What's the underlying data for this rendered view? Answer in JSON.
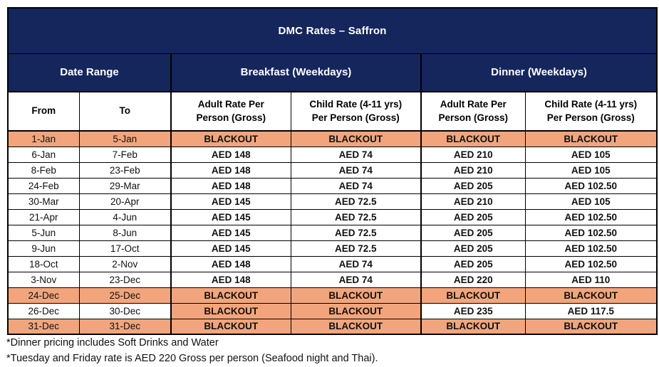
{
  "colors": {
    "navy": "#15265D",
    "blackout_orange": "#F2A57C",
    "border": "#000000",
    "header_text": "#ffffff",
    "body_text": "#111111"
  },
  "table": {
    "title": "DMC Rates – Saffron",
    "groups": [
      "Date Range",
      "Breakfast (Weekdays)",
      "Dinner (Weekdays)"
    ],
    "columns": [
      {
        "lines": [
          "From"
        ]
      },
      {
        "lines": [
          "To"
        ]
      },
      {
        "lines": [
          "Adult Rate Per",
          "Person (Gross)"
        ]
      },
      {
        "lines": [
          "Child Rate (4-11 yrs)",
          "Per Person (Gross)"
        ]
      },
      {
        "lines": [
          "Adult Rate Per",
          "Person (Gross)"
        ]
      },
      {
        "lines": [
          "Child Rate (4-11 yrs)",
          "Per Person (Gross)"
        ]
      }
    ],
    "rows": [
      {
        "values": [
          "1-Jan",
          "5-Jan",
          "BLACKOUT",
          "BLACKOUT",
          "BLACKOUT",
          "BLACKOUT"
        ],
        "blackout": [
          true,
          true,
          true,
          true,
          true,
          true
        ]
      },
      {
        "values": [
          "6-Jan",
          "7-Feb",
          "AED 148",
          "AED 74",
          "AED 210",
          "AED 105"
        ],
        "blackout": [
          false,
          false,
          false,
          false,
          false,
          false
        ]
      },
      {
        "values": [
          "8-Feb",
          "23-Feb",
          "AED 148",
          "AED 74",
          "AED 210",
          "AED 105"
        ],
        "blackout": [
          false,
          false,
          false,
          false,
          false,
          false
        ]
      },
      {
        "values": [
          "24-Feb",
          "29-Mar",
          "AED 148",
          "AED 74",
          "AED 205",
          "AED 102.50"
        ],
        "blackout": [
          false,
          false,
          false,
          false,
          false,
          false
        ]
      },
      {
        "values": [
          "30-Mar",
          "20-Apr",
          "AED 145",
          "AED 72.5",
          "AED 210",
          "AED 105"
        ],
        "blackout": [
          false,
          false,
          false,
          false,
          false,
          false
        ]
      },
      {
        "values": [
          "21-Apr",
          "4-Jun",
          "AED 145",
          "AED 72.5",
          "AED 205",
          "AED 102.50"
        ],
        "blackout": [
          false,
          false,
          false,
          false,
          false,
          false
        ]
      },
      {
        "values": [
          "5-Jun",
          "8-Jun",
          "AED 145",
          "AED 72.5",
          "AED 205",
          "AED 102.50"
        ],
        "blackout": [
          false,
          false,
          false,
          false,
          false,
          false
        ]
      },
      {
        "values": [
          "9-Jun",
          "17-Oct",
          "AED 145",
          "AED 72.5",
          "AED 205",
          "AED 102.50"
        ],
        "blackout": [
          false,
          false,
          false,
          false,
          false,
          false
        ]
      },
      {
        "values": [
          "18-Oct",
          "2-Nov",
          "AED 148",
          "AED 74",
          "AED 205",
          "AED 102.50"
        ],
        "blackout": [
          false,
          false,
          false,
          false,
          false,
          false
        ]
      },
      {
        "values": [
          "3-Nov",
          "23-Dec",
          "AED 148",
          "AED 74",
          "AED 220",
          "AED 110"
        ],
        "blackout": [
          false,
          false,
          false,
          false,
          false,
          false
        ]
      },
      {
        "values": [
          "24-Dec",
          "25-Dec",
          "BLACKOUT",
          "BLACKOUT",
          "BLACKOUT",
          "BLACKOUT"
        ],
        "blackout": [
          true,
          true,
          true,
          true,
          true,
          true
        ]
      },
      {
        "values": [
          "26-Dec",
          "30-Dec",
          "BLACKOUT",
          "BLACKOUT",
          "AED 235",
          "AED 117.5"
        ],
        "blackout": [
          false,
          false,
          true,
          true,
          false,
          false
        ]
      },
      {
        "values": [
          "31-Dec",
          "31-Dec",
          "BLACKOUT",
          "BLACKOUT",
          "BLACKOUT",
          "BLACKOUT"
        ],
        "blackout": [
          true,
          true,
          true,
          true,
          true,
          true
        ]
      }
    ]
  },
  "notes": [
    "*Dinner pricing includes Soft Drinks and Water",
    "*Tuesday and Friday rate is AED 220 Gross per person (Seafood night and Thai)."
  ]
}
